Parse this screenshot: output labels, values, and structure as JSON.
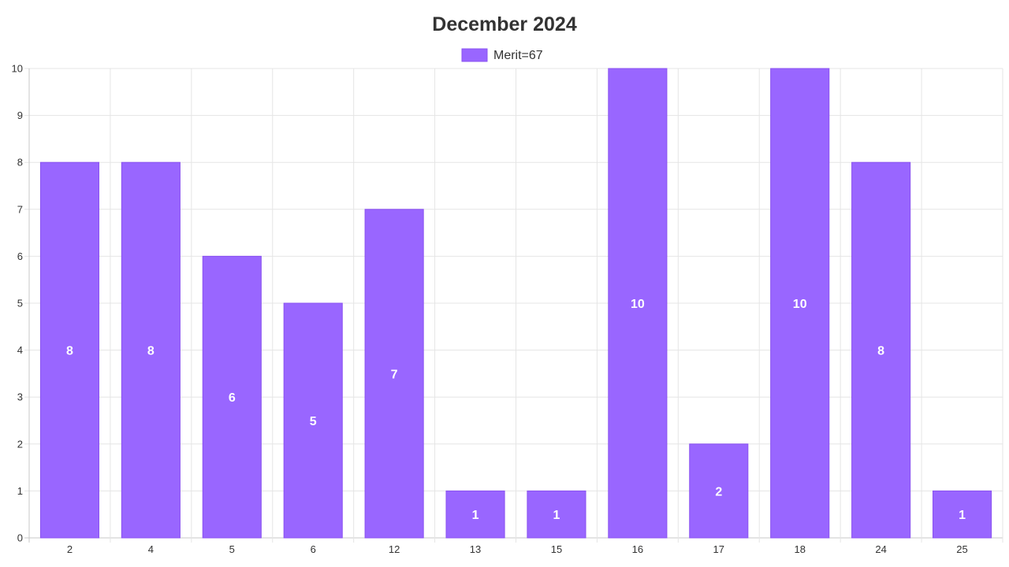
{
  "chart_data": {
    "type": "bar",
    "title": "December 2024",
    "xlabel": "",
    "ylabel": "",
    "categories": [
      "2",
      "4",
      "5",
      "6",
      "12",
      "13",
      "15",
      "16",
      "17",
      "18",
      "24",
      "25"
    ],
    "series": [
      {
        "name": "Merit=67",
        "values": [
          8,
          8,
          6,
          5,
          7,
          1,
          1,
          10,
          2,
          10,
          8,
          1
        ],
        "color": "#9966ff",
        "border_color": "#8a52f0"
      }
    ],
    "ylim": [
      0,
      10
    ],
    "yticks": [
      "0",
      "1",
      "2",
      "3",
      "4",
      "5",
      "6",
      "7",
      "8",
      "9",
      "10"
    ],
    "grid": true,
    "legend_position": "top-center",
    "data_labels": true
  }
}
